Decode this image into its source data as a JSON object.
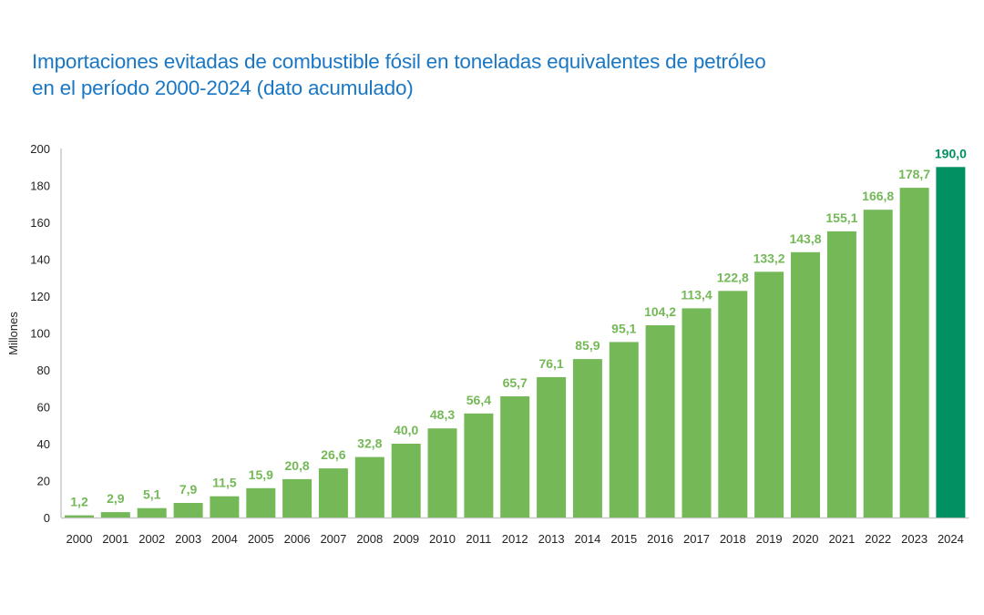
{
  "chart_data": {
    "type": "bar",
    "title_lines": [
      "Importaciones evitadas de combustible fósil en toneladas equivalentes de petróleo",
      "en el período 2000-2024 (dato acumulado)"
    ],
    "xlabel": "",
    "ylabel": "Millones",
    "ylim": [
      0,
      200
    ],
    "yticks": [
      "0",
      "20",
      "40",
      "60",
      "80",
      "100",
      "120",
      "140",
      "160",
      "180",
      "200"
    ],
    "ytick_values": [
      0,
      20,
      40,
      60,
      80,
      100,
      120,
      140,
      160,
      180,
      200
    ],
    "grid": false,
    "categories": [
      "2000",
      "2001",
      "2002",
      "2003",
      "2004",
      "2005",
      "2006",
      "2007",
      "2008",
      "2009",
      "2010",
      "2011",
      "2012",
      "2013",
      "2014",
      "2015",
      "2016",
      "2017",
      "2018",
      "2019",
      "2020",
      "2021",
      "2022",
      "2023",
      "2024"
    ],
    "values": [
      1.2,
      2.9,
      5.1,
      7.9,
      11.5,
      15.9,
      20.8,
      26.6,
      32.8,
      40.0,
      48.3,
      56.4,
      65.7,
      76.1,
      85.9,
      95.1,
      104.2,
      113.4,
      122.8,
      133.2,
      143.8,
      155.1,
      166.8,
      178.7,
      190.0
    ],
    "data_labels": [
      "1,2",
      "2,9",
      "5,1",
      "7,9",
      "11,5",
      "15,9",
      "20,8",
      "26,6",
      "32,8",
      "40,0",
      "48,3",
      "56,4",
      "65,7",
      "76,1",
      "85,9",
      "95,1",
      "104,2",
      "113,4",
      "122,8",
      "133,2",
      "143,8",
      "155,1",
      "166,8",
      "178,7",
      "190,0"
    ],
    "highlight_index": 24,
    "colors": {
      "bar": "#74b857",
      "bar_highlight": "#009061",
      "label": "#74b857",
      "label_highlight": "#009061",
      "title": "#1a77c4",
      "axis": "#c8c8c8"
    }
  }
}
